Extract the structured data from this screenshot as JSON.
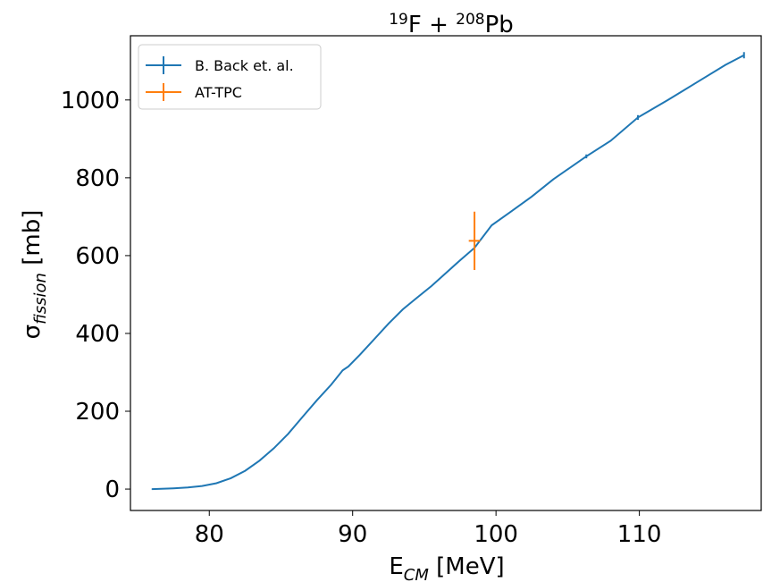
{
  "chart_data": {
    "type": "line",
    "title": {
      "base1": "",
      "sup1": "19",
      "mid": "F + ",
      "sup2": "208",
      "base2": "Pb"
    },
    "xlabel": {
      "base": "E",
      "sub": "CM",
      "rest": " [MeV]"
    },
    "ylabel": {
      "base": "σ",
      "sub": "fission",
      "rest": " [mb]"
    },
    "xlim": [
      74.5,
      118.5
    ],
    "ylim": [
      -55,
      1165
    ],
    "xticks": [
      80,
      90,
      100,
      110
    ],
    "yticks": [
      0,
      200,
      400,
      600,
      800,
      1000
    ],
    "grid": false,
    "legend_position": "upper-left",
    "series": [
      {
        "name": "B. Back et. al.",
        "color": "#1f77b4",
        "x": [
          76.0,
          77.5,
          78.5,
          79.5,
          80.5,
          81.5,
          82.5,
          83.5,
          84.5,
          85.5,
          86.5,
          87.5,
          88.5,
          89.3,
          89.7,
          90.5,
          91.5,
          92.5,
          93.5,
          94.5,
          95.5,
          96.5,
          97.5,
          98.5,
          99.7,
          101.0,
          102.5,
          104.0,
          106.3,
          108.0,
          109.9,
          112.0,
          114.0,
          116.0,
          117.3
        ],
        "y": [
          0,
          2,
          4,
          8,
          15,
          28,
          47,
          73,
          105,
          142,
          185,
          228,
          268,
          305,
          315,
          345,
          385,
          425,
          462,
          492,
          522,
          555,
          588,
          620,
          678,
          712,
          752,
          796,
          855,
          895,
          955,
          1000,
          1045,
          1090,
          1115
        ],
        "yerr": [
          0,
          0,
          0,
          0,
          0,
          0,
          0,
          0,
          0,
          0,
          0,
          0,
          0,
          0,
          0,
          0,
          0,
          0,
          0,
          0,
          0,
          0,
          0,
          0,
          0,
          0,
          0,
          0,
          5,
          0,
          6,
          0,
          0,
          0,
          8
        ]
      },
      {
        "name": "AT-TPC",
        "color": "#ff7f0e",
        "x": [
          98.5
        ],
        "y": [
          638
        ],
        "xerr": [
          0.4
        ],
        "yerr": [
          75
        ]
      }
    ]
  }
}
